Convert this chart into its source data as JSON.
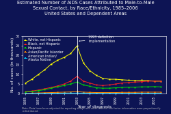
{
  "title_line1": "Estimated Number of AIDS Cases Attributed to Male-to-Male",
  "title_line2": "Sexual Contact, by Race/Ethnicity, 1985–2006",
  "title_line3": "United States and Dependent Areas",
  "xlabel": "Year of diagnosis",
  "ylabel": "No. of cases (in thousands)",
  "background_color": "#0d1454",
  "text_color": "#ffffff",
  "years": [
    1985,
    1986,
    1987,
    1988,
    1989,
    1990,
    1991,
    1992,
    1993,
    1994,
    1995,
    1996,
    1997,
    1998,
    1999,
    2000,
    2001,
    2002,
    2003,
    2004,
    2005,
    2006
  ],
  "series": {
    "White, not Hispanic": {
      "color": "#ffff00",
      "data": [
        5.5,
        7.5,
        10.0,
        12.5,
        15.5,
        17.5,
        19.0,
        21.0,
        25.0,
        16.0,
        12.0,
        9.5,
        8.0,
        7.5,
        7.5,
        7.2,
        7.0,
        6.8,
        7.0,
        6.8,
        6.5,
        6.5
      ]
    },
    "Black, not Hispanic": {
      "color": "#ff2222",
      "data": [
        1.0,
        1.3,
        1.8,
        2.5,
        3.2,
        4.0,
        5.0,
        6.5,
        9.0,
        6.5,
        5.5,
        4.5,
        4.2,
        4.5,
        5.0,
        5.5,
        5.8,
        6.0,
        6.2,
        6.5,
        6.5,
        6.5
      ]
    },
    "Hispanic": {
      "color": "#00dd00",
      "data": [
        0.8,
        1.0,
        1.5,
        2.0,
        2.8,
        3.5,
        4.2,
        5.0,
        6.0,
        4.5,
        3.8,
        3.0,
        2.8,
        2.8,
        3.0,
        3.2,
        3.3,
        3.3,
        3.5,
        3.5,
        3.6,
        3.5
      ]
    },
    "Asian/Pacific Islander": {
      "color": "#ff8800",
      "data": [
        0.1,
        0.2,
        0.3,
        0.4,
        0.5,
        0.6,
        0.7,
        0.8,
        1.0,
        0.7,
        0.6,
        0.5,
        0.5,
        0.5,
        0.5,
        0.6,
        0.6,
        0.6,
        0.7,
        0.7,
        0.7,
        0.7
      ]
    },
    "American Indian/\nAlaska Native": {
      "color": "#00ccff",
      "data": [
        0.05,
        0.07,
        0.09,
        0.1,
        0.12,
        0.15,
        0.17,
        0.2,
        0.22,
        0.18,
        0.15,
        0.13,
        0.12,
        0.12,
        0.13,
        0.13,
        0.14,
        0.14,
        0.15,
        0.15,
        0.15,
        0.15
      ]
    }
  },
  "vline_year": 1993,
  "ylim": [
    0,
    30
  ],
  "yticks": [
    0,
    5,
    10,
    15,
    20,
    25,
    30
  ],
  "xtick_years": [
    1985,
    1987,
    1989,
    1991,
    1993,
    1995,
    1997,
    1999,
    2001,
    2003,
    2005
  ],
  "note": "Note: Data have been adjusted for reporting delays and cases without risk factor information were proportionally redistributed.",
  "title_fontsize": 4.8,
  "axis_label_fontsize": 4.2,
  "legend_fontsize": 3.5,
  "tick_fontsize": 3.5,
  "annot_fontsize": 3.5,
  "note_fontsize": 2.5
}
